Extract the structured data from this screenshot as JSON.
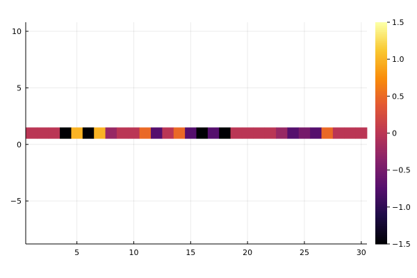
{
  "chart_data": {
    "type": "heatmap",
    "title": "",
    "xlabel": "",
    "ylabel": "",
    "x": [
      1,
      2,
      3,
      4,
      5,
      6,
      7,
      8,
      9,
      10,
      11,
      12,
      13,
      14,
      15,
      16,
      17,
      18,
      19,
      20,
      21,
      22,
      23,
      24,
      25,
      26,
      27,
      28,
      29,
      30
    ],
    "y": [
      1
    ],
    "values": [
      [
        0,
        0,
        0,
        -1.5,
        1.0,
        -1.5,
        1.0,
        -0.25,
        0,
        0,
        0.5,
        -0.75,
        0,
        0.5,
        -0.75,
        -1.5,
        -0.75,
        -1.5,
        0,
        0,
        0,
        0,
        -0.25,
        -0.75,
        -0.5,
        -0.75,
        0.5,
        0,
        0,
        0
      ]
    ],
    "xlim": [
      0.5,
      30.5
    ],
    "ylim": [
      -8.8,
      10.8
    ],
    "cell_y_range": [
      0.5,
      1.5
    ],
    "xticks": [
      5,
      10,
      15,
      20,
      25,
      30
    ],
    "xtick_labels": [
      "5",
      "10",
      "15",
      "20",
      "25",
      "30"
    ],
    "yticks": [
      -5,
      0,
      5,
      10
    ],
    "ytick_labels": [
      "−5",
      "0",
      "5",
      "10"
    ],
    "colorbar": {
      "colormap": "inferno",
      "range": [
        -1.5,
        1.5
      ],
      "ticks": [
        -1.5,
        -1.0,
        -0.5,
        0,
        0.5,
        1.0,
        1.5
      ],
      "tick_labels": [
        "−1.5",
        "−1.0",
        "−0.5",
        "0",
        "0.5",
        "1.0",
        "1.5"
      ]
    },
    "grid": true,
    "legend": "none"
  }
}
